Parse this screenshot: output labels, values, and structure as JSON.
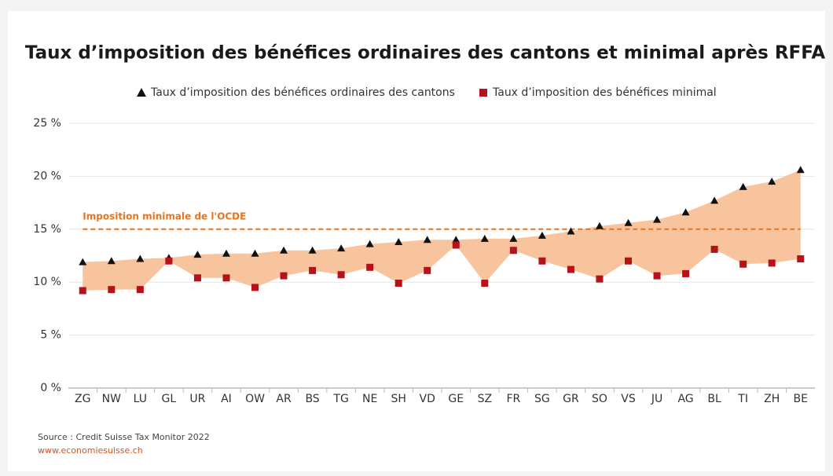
{
  "chart_data": {
    "type": "range",
    "title": "Taux d’imposition des bénéfices ordinaires des cantons et minimal après RFFA",
    "categories": [
      "ZG",
      "NW",
      "LU",
      "GL",
      "UR",
      "AI",
      "OW",
      "AR",
      "BS",
      "TG",
      "NE",
      "SH",
      "VD",
      "GE",
      "SZ",
      "FR",
      "SG",
      "GR",
      "SO",
      "VS",
      "JU",
      "AG",
      "BL",
      "TI",
      "ZH",
      "BE"
    ],
    "series": [
      {
        "name": "Taux d’imposition des bénéfices ordinaires des cantons",
        "color": "#111111",
        "marker": "triangle",
        "values": [
          11.9,
          12.0,
          12.2,
          12.3,
          12.6,
          12.7,
          12.7,
          13.0,
          13.0,
          13.2,
          13.6,
          13.8,
          14.0,
          14.0,
          14.1,
          14.1,
          14.4,
          14.8,
          15.3,
          15.6,
          15.9,
          16.6,
          17.7,
          19.0,
          19.5,
          20.6
        ]
      },
      {
        "name": "Taux d’imposition des bénéfices minimal",
        "color": "#b5121b",
        "marker": "square",
        "values": [
          9.2,
          9.3,
          9.3,
          12.0,
          10.4,
          10.4,
          9.5,
          10.6,
          11.1,
          10.7,
          11.4,
          9.9,
          11.1,
          13.5,
          9.9,
          13.0,
          12.0,
          11.2,
          10.3,
          12.0,
          10.6,
          10.8,
          13.1,
          11.7,
          11.8,
          12.2
        ]
      }
    ],
    "area_color": "#f7c49e",
    "ylim": [
      0,
      25
    ],
    "yticks": [
      {
        "value": 0,
        "label": "0 %"
      },
      {
        "value": 5,
        "label": "5 %"
      },
      {
        "value": 10,
        "label": "10 %"
      },
      {
        "value": 15,
        "label": "15 %"
      },
      {
        "value": 20,
        "label": "20 %"
      },
      {
        "value": 25,
        "label": "25 %"
      }
    ],
    "grid": true,
    "legend": "top",
    "ref_lines": [
      {
        "value": 15,
        "label": "Imposition minimale de l'OCDE",
        "color": "#e8731c"
      }
    ],
    "source": "Source : Credit Suisse Tax Monitor 2022",
    "url": "www.economiesuisse.ch"
  }
}
